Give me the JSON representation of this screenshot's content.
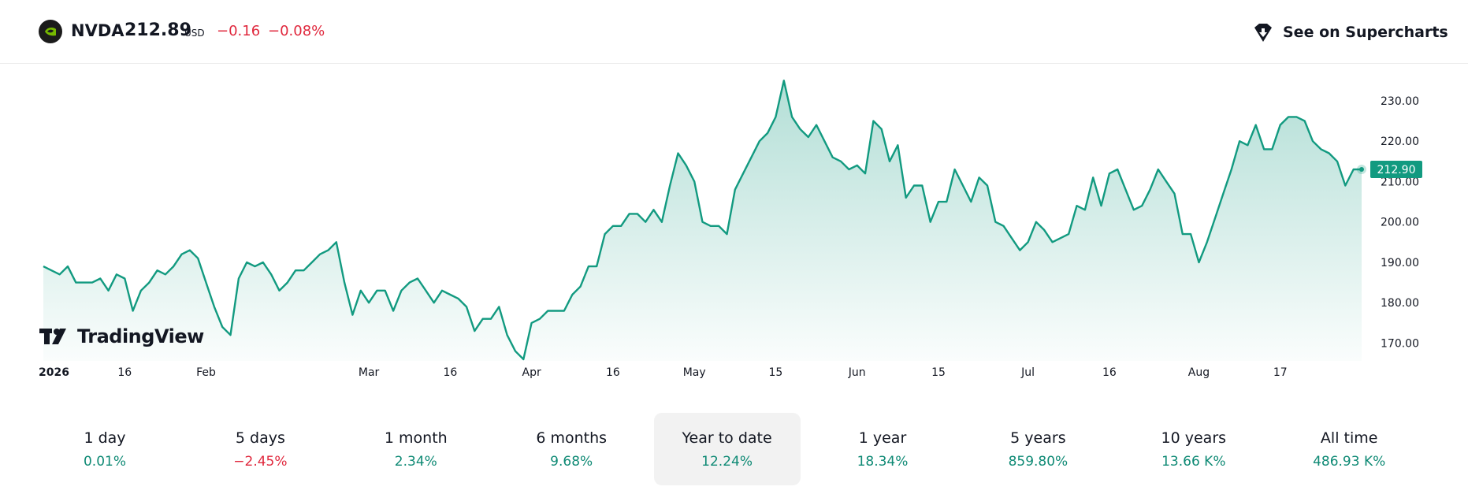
{
  "header": {
    "symbol": "NVDA",
    "price": "212.89",
    "currency": "USD",
    "change": "−0.16",
    "change_pct": "−0.08%",
    "change_color": "#e0283d",
    "logo_icon": "nvidia-logo",
    "supercharts_icon": "tradingview-shield-icon",
    "supercharts_label": "See on Supercharts"
  },
  "watermark": {
    "text": "TradingView",
    "icon": "tradingview-logo"
  },
  "chart_data": {
    "type": "area",
    "line_color": "#129a80",
    "fill_color": "#129a80",
    "y_ticks": [
      "170.00",
      "180.00",
      "190.00",
      "200.00",
      "210.00",
      "220.00",
      "230.00"
    ],
    "ylim": [
      166,
      237
    ],
    "last_price_label": "212.90",
    "x_labels": [
      {
        "text": "2026",
        "index": 0,
        "bold": true
      },
      {
        "text": "16",
        "index": 10
      },
      {
        "text": "Feb",
        "index": 20
      },
      {
        "text": "Mar",
        "index": 40
      },
      {
        "text": "16",
        "index": 50
      },
      {
        "text": "Apr",
        "index": 60
      },
      {
        "text": "16",
        "index": 70
      },
      {
        "text": "May",
        "index": 80
      },
      {
        "text": "15",
        "index": 90
      },
      {
        "text": "Jun",
        "index": 100
      },
      {
        "text": "15",
        "index": 110
      },
      {
        "text": "Jul",
        "index": 121
      },
      {
        "text": "16",
        "index": 131
      },
      {
        "text": "Aug",
        "index": 142
      },
      {
        "text": "17",
        "index": 152
      }
    ],
    "values": [
      189,
      188,
      187,
      189,
      185,
      185,
      185,
      186,
      183,
      187,
      186,
      178,
      183,
      185,
      188,
      187,
      189,
      192,
      193,
      191,
      185,
      179,
      174,
      172,
      186,
      190,
      189,
      190,
      187,
      183,
      185,
      188,
      188,
      190,
      192,
      193,
      195,
      185,
      177,
      183,
      180,
      183,
      183,
      178,
      183,
      185,
      186,
      183,
      180,
      183,
      182,
      181,
      179,
      173,
      176,
      176,
      179,
      172,
      168,
      166,
      175,
      176,
      178,
      178,
      178,
      182,
      184,
      189,
      189,
      197,
      199,
      199,
      202,
      202,
      200,
      203,
      200,
      209,
      217,
      214,
      210,
      200,
      199,
      199,
      197,
      208,
      212,
      216,
      220,
      222,
      226,
      235,
      226,
      223,
      221,
      224,
      220,
      216,
      215,
      213,
      214,
      212,
      225,
      223,
      215,
      219,
      206,
      209,
      209,
      200,
      205,
      205,
      213,
      209,
      205,
      211,
      209,
      200,
      199,
      196,
      193,
      195,
      200,
      198,
      195,
      196,
      197,
      204,
      203,
      211,
      204,
      212,
      213,
      208,
      203,
      204,
      208,
      213,
      210,
      207,
      197,
      197,
      190,
      195,
      201,
      207,
      213,
      220,
      219,
      224,
      218,
      218,
      224,
      226,
      226,
      225,
      220,
      218,
      217,
      215,
      209,
      213,
      213
    ]
  },
  "periods": [
    {
      "label": "1 day",
      "value": "0.01%",
      "dir": "pos"
    },
    {
      "label": "5 days",
      "value": "−2.45%",
      "dir": "neg"
    },
    {
      "label": "1 month",
      "value": "2.34%",
      "dir": "pos"
    },
    {
      "label": "6 months",
      "value": "9.68%",
      "dir": "pos"
    },
    {
      "label": "Year to date",
      "value": "12.24%",
      "dir": "pos",
      "active": true
    },
    {
      "label": "1 year",
      "value": "18.34%",
      "dir": "pos"
    },
    {
      "label": "5 years",
      "value": "859.80%",
      "dir": "pos"
    },
    {
      "label": "10 years",
      "value": "13.66 K%",
      "dir": "pos"
    },
    {
      "label": "All time",
      "value": "486.93 K%",
      "dir": "pos"
    }
  ]
}
